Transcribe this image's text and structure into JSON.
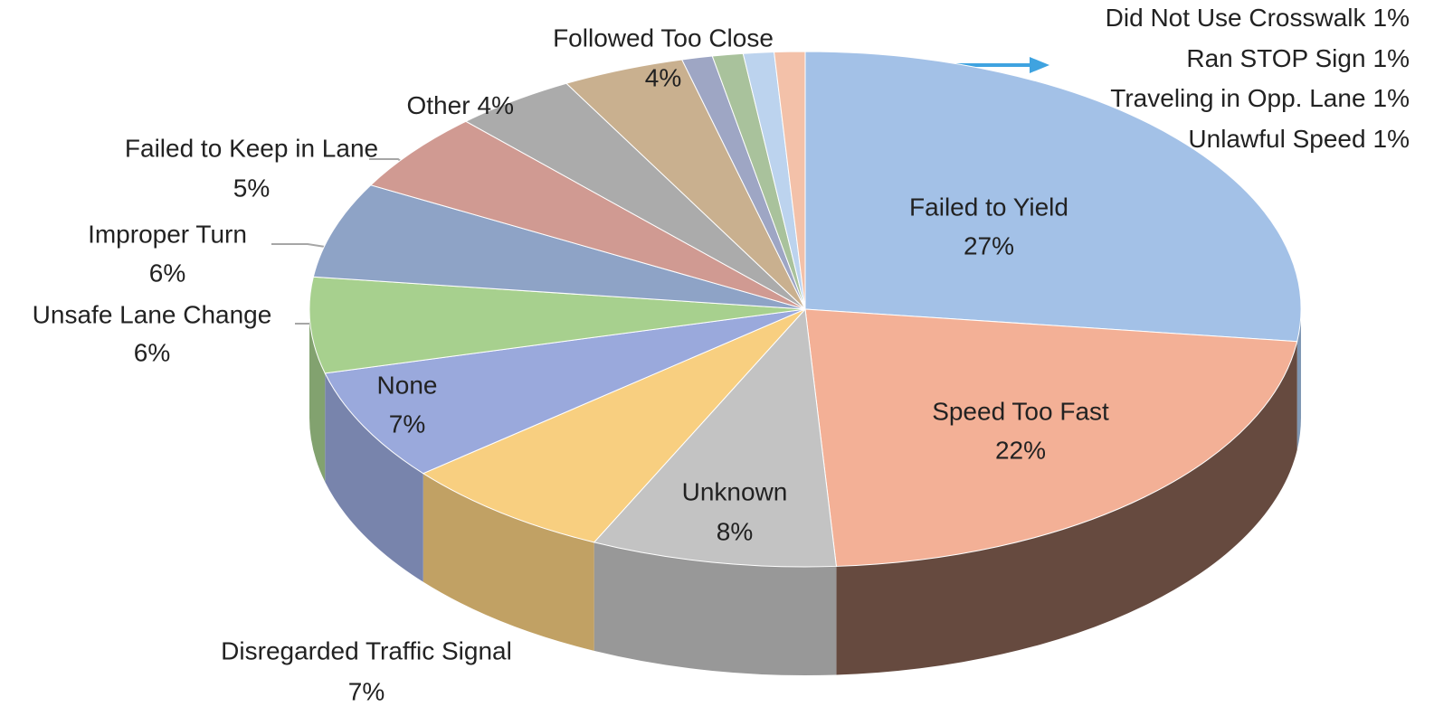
{
  "chart_data": {
    "type": "pie3d",
    "categories": [
      "Failed to Yield",
      "Speed Too Fast",
      "Unknown",
      "Disregarded Traffic Signal",
      "None",
      "Unsafe Lane Change",
      "Improper Turn",
      "Failed to Keep in Lane",
      "Other",
      "Followed Too Close",
      "Did Not Use Crosswalk",
      "Ran STOP Sign",
      "Traveling in Opp. Lane",
      "Unlawful Speed"
    ],
    "values": [
      27,
      22,
      8,
      7,
      7,
      6,
      6,
      5,
      4,
      4,
      1,
      1,
      1,
      1
    ],
    "value_labels": [
      "27%",
      "22%",
      "8%",
      "7%",
      "7%",
      "6%",
      "6%",
      "5%",
      "4%",
      "4%",
      "1%",
      "1%",
      "1%",
      "1%"
    ],
    "colors": [
      "#a3c1e7",
      "#f3b096",
      "#c3c3c3",
      "#f8cf80",
      "#9aa9dc",
      "#a7d08e",
      "#8ea3c6",
      "#d09a92",
      "#ababab",
      "#c9b08f",
      "#9ea6c4",
      "#a9c29c",
      "#bcd3ee",
      "#f3c1a9"
    ]
  }
}
